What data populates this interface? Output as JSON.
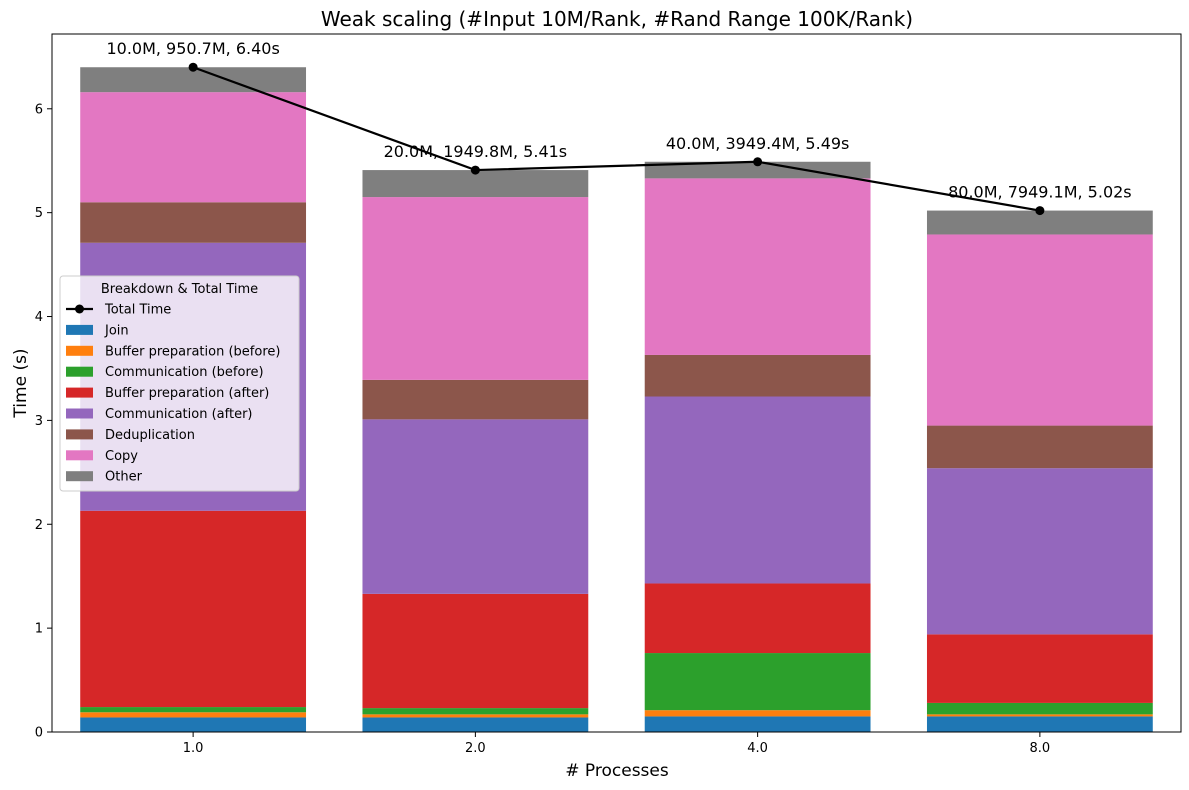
{
  "chart_data": {
    "type": "bar",
    "stacked": true,
    "title": "Weak scaling (#Input 10M/Rank, #Rand Range 100K/Rank)",
    "xlabel": "# Processes",
    "ylabel": "Time (s)",
    "categories": [
      "1.0",
      "2.0",
      "4.0",
      "8.0"
    ],
    "ylim": [
      0,
      6.72
    ],
    "yticks": [
      "0",
      "1",
      "2",
      "3",
      "4",
      "5",
      "6"
    ],
    "grid": false,
    "legend": {
      "title": "Breakdown & Total Time",
      "placement": "center-left"
    },
    "series": [
      {
        "name": "Join",
        "color": "#1f77b4",
        "values": [
          0.14,
          0.14,
          0.15,
          0.15
        ]
      },
      {
        "name": "Buffer preparation (before)",
        "color": "#ff7f0e",
        "values": [
          0.05,
          0.03,
          0.06,
          0.02
        ]
      },
      {
        "name": "Communication (before)",
        "color": "#2ca02c",
        "values": [
          0.05,
          0.06,
          0.55,
          0.11
        ]
      },
      {
        "name": "Buffer preparation (after)",
        "color": "#d62728",
        "values": [
          1.89,
          1.1,
          0.67,
          0.66
        ]
      },
      {
        "name": "Communication (after)",
        "color": "#9467bd",
        "values": [
          2.58,
          1.68,
          1.8,
          1.6
        ]
      },
      {
        "name": "Deduplication",
        "color": "#8c564b",
        "values": [
          0.39,
          0.38,
          0.4,
          0.41
        ]
      },
      {
        "name": "Copy",
        "color": "#e377c2",
        "values": [
          1.06,
          1.76,
          1.7,
          1.84
        ]
      },
      {
        "name": "Other",
        "color": "#7f7f7f",
        "values": [
          0.24,
          0.26,
          0.16,
          0.23
        ]
      }
    ],
    "total_line": {
      "name": "Total Time",
      "color": "#000000",
      "values": [
        6.4,
        5.41,
        5.49,
        5.02
      ],
      "annotations": [
        "10.0M, 950.7M, 6.40s",
        "20.0M, 1949.8M, 5.41s",
        "40.0M, 3949.4M, 5.49s",
        "80.0M, 7949.1M, 5.02s"
      ]
    }
  }
}
